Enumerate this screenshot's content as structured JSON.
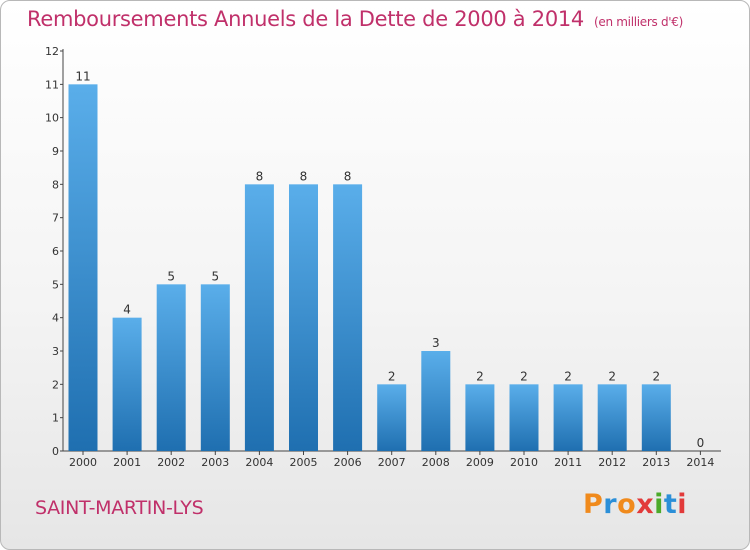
{
  "title": "Remboursements Annuels de la Dette de 2000 à 2014",
  "unit": "(en milliers d'€)",
  "commune": "SAINT-MARTIN-LYS",
  "brand": "Proxiti",
  "colors": {
    "title": "#c0306a",
    "bar_top": "#5aaeea",
    "bar_bottom": "#1f6fb0"
  },
  "chart_data": {
    "type": "bar",
    "categories": [
      "2000",
      "2001",
      "2002",
      "2003",
      "2004",
      "2005",
      "2006",
      "2007",
      "2008",
      "2009",
      "2010",
      "2011",
      "2012",
      "2013",
      "2014"
    ],
    "values": [
      11,
      4,
      5,
      5,
      8,
      8,
      8,
      2,
      3,
      2,
      2,
      2,
      2,
      2,
      0
    ],
    "ylim": [
      0,
      12
    ],
    "yticks": [
      0,
      1,
      2,
      3,
      4,
      5,
      6,
      7,
      8,
      9,
      10,
      11,
      12
    ],
    "grid": false,
    "data_labels": true
  }
}
